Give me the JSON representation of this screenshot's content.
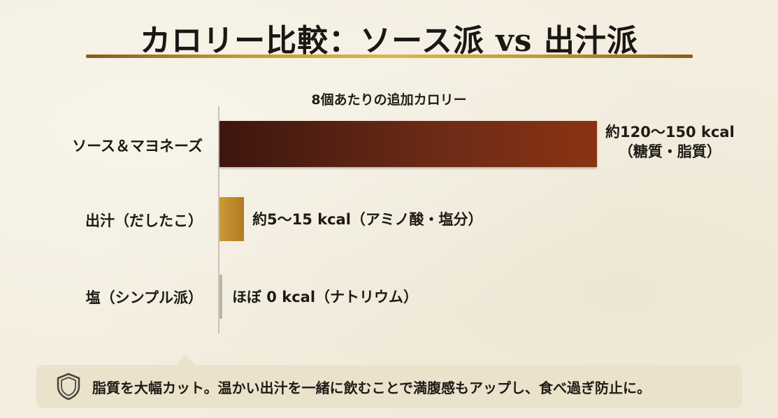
{
  "title": "カロリー比較：ソース派 vs 出汁派",
  "chart_data": {
    "type": "bar",
    "orientation": "horizontal",
    "title": "8個あたりの追加カロリー",
    "unit": "kcal",
    "categories": [
      "ソース＆マヨネーズ",
      "出汁（だしたこ）",
      "塩（シンプル派）"
    ],
    "values": [
      135,
      10,
      0
    ],
    "value_ranges": [
      [
        120,
        150
      ],
      [
        5,
        15
      ],
      [
        0,
        0
      ]
    ],
    "value_labels": [
      [
        "約120〜150 kcal",
        "（糖質・脂質）"
      ],
      [
        "約5〜15 kcal（アミノ酸・塩分）"
      ],
      [
        "ほぼ 0 kcal（ナトリウム）"
      ]
    ],
    "colors": [
      "#5a2212",
      "#c0892b",
      "#b9b4ab"
    ],
    "grid": false,
    "legend": "none"
  },
  "footer": {
    "icon": "shield-icon",
    "text": "脂質を大幅カット。温かい出汁を一緒に飲むことで満腹感もアップし、食べ過ぎ防止に。"
  }
}
